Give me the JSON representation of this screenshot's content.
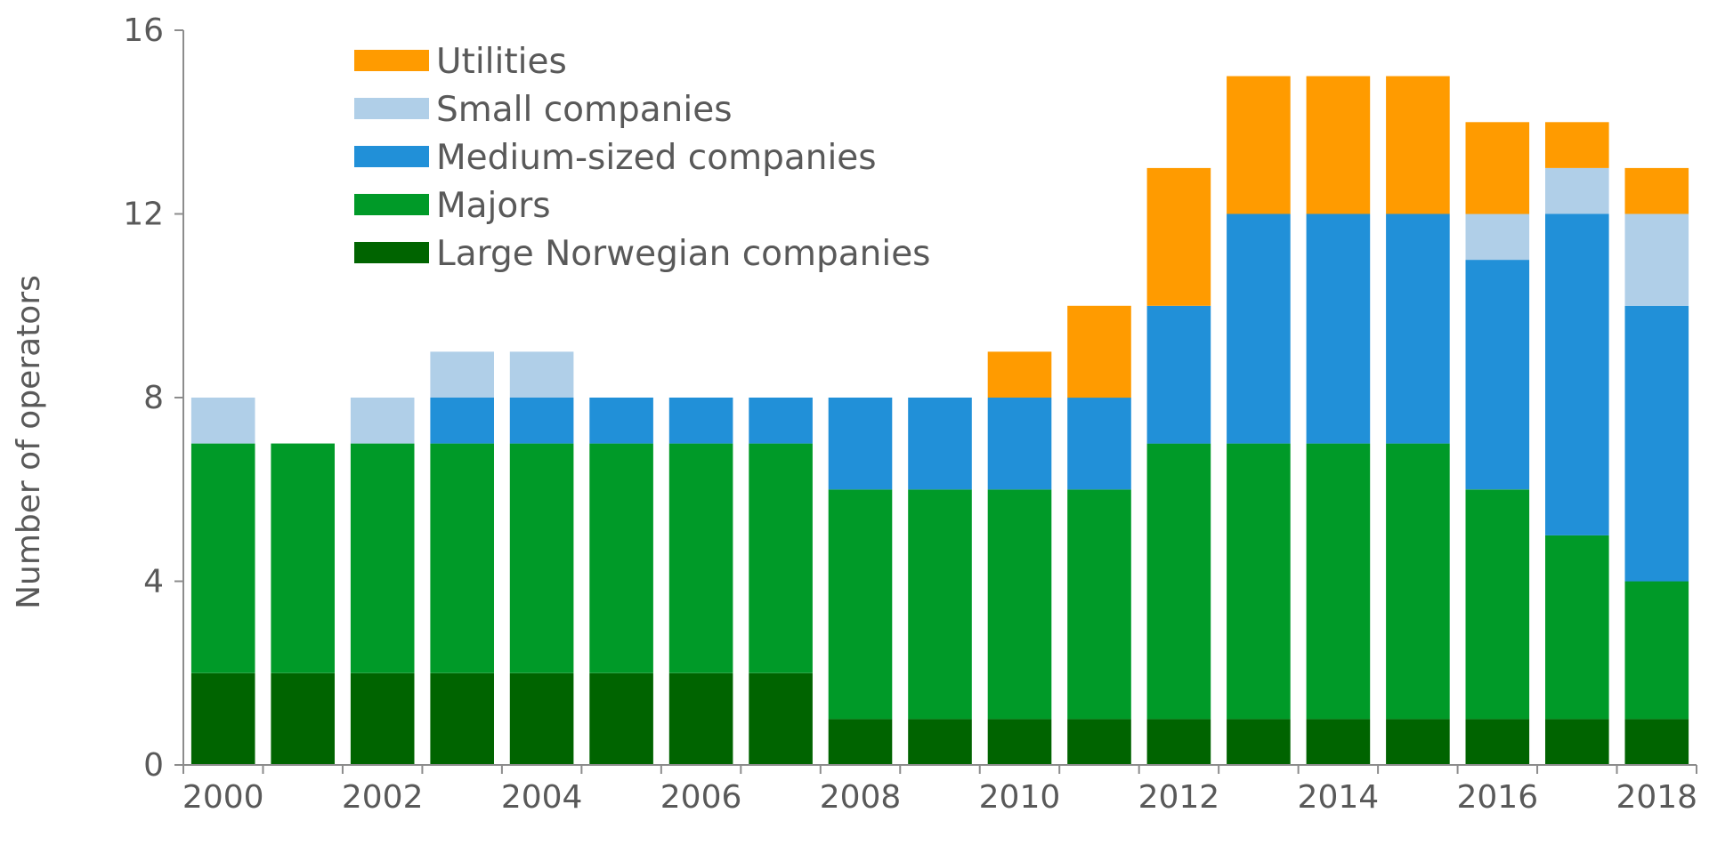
{
  "chart_data": {
    "type": "bar",
    "stacked": true,
    "title": "",
    "xlabel": "",
    "ylabel": "Number of operators",
    "ylim": [
      0,
      16
    ],
    "yticks": [
      0,
      4,
      8,
      12,
      16
    ],
    "grid": false,
    "legend_position": "top-left",
    "categories": [
      "2000",
      "2001",
      "2002",
      "2003",
      "2004",
      "2005",
      "2006",
      "2007",
      "2008",
      "2009",
      "2010",
      "2011",
      "2012",
      "2013",
      "2014",
      "2015",
      "2016",
      "2017",
      "2018"
    ],
    "x_tick_labels": [
      "2000",
      "",
      "2002",
      "",
      "2004",
      "",
      "2006",
      "",
      "2008",
      "",
      "2010",
      "",
      "2012",
      "",
      "2014",
      "",
      "2016",
      "",
      "2018"
    ],
    "series": [
      {
        "name": "Large Norwegian companies",
        "color": "#006400",
        "values": [
          2,
          2,
          2,
          2,
          2,
          2,
          2,
          2,
          1,
          1,
          1,
          1,
          1,
          1,
          1,
          1,
          1,
          1,
          1
        ]
      },
      {
        "name": "Majors",
        "color": "#009a28",
        "values": [
          5,
          5,
          5,
          5,
          5,
          5,
          5,
          5,
          5,
          5,
          5,
          5,
          6,
          6,
          6,
          6,
          5,
          4,
          3
        ]
      },
      {
        "name": "Medium-sized companies",
        "color": "#2190d8",
        "values": [
          0,
          0,
          0,
          1,
          1,
          1,
          1,
          1,
          2,
          2,
          2,
          2,
          3,
          5,
          5,
          5,
          5,
          7,
          6
        ]
      },
      {
        "name": "Small companies",
        "color": "#b0cfe8",
        "values": [
          1,
          0,
          1,
          1,
          1,
          0,
          0,
          0,
          0,
          0,
          0,
          0,
          0,
          0,
          0,
          0,
          1,
          1,
          2
        ]
      },
      {
        "name": "Utilities",
        "color": "#ff9b00",
        "values": [
          0,
          0,
          0,
          0,
          0,
          0,
          0,
          0,
          0,
          0,
          1,
          2,
          3,
          3,
          3,
          3,
          2,
          1,
          1
        ]
      }
    ],
    "legend_order": [
      "Utilities",
      "Small companies",
      "Medium-sized companies",
      "Majors",
      "Large Norwegian companies"
    ]
  }
}
